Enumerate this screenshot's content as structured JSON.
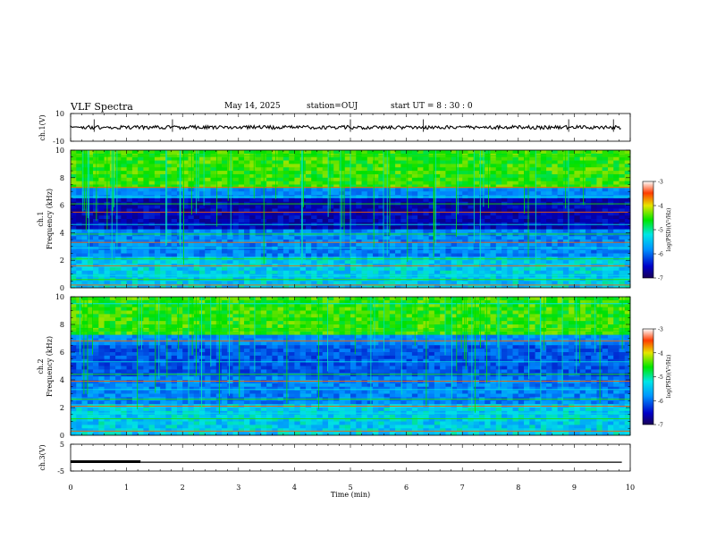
{
  "header": {
    "title": "VLF Spectra",
    "date": "May 14, 2025",
    "station": "station=OUJ",
    "start": "start  UT =  8 : 30 : 0"
  },
  "chart_data": [
    {
      "type": "line",
      "name": "ch.1 waveform",
      "ylabel": "ch.1(V)",
      "ylim": [
        -10,
        10
      ],
      "yticks": [
        "10",
        "-10"
      ],
      "xlim": [
        0,
        10
      ],
      "trace_level": 0,
      "spike_times": [
        0.42,
        1.82,
        5.0,
        6.3,
        8.9,
        9.7
      ]
    },
    {
      "type": "heatmap",
      "name": "ch.1 spectrogram",
      "ylabel_line1": "ch.1",
      "ylabel_line2": "Frequency  (kHz)",
      "ylim": [
        0,
        10
      ],
      "yticks": [
        "0",
        "2",
        "4",
        "6",
        "8",
        "10"
      ],
      "xlim": [
        0,
        10
      ],
      "colorbar": {
        "range": [
          -7,
          -3
        ],
        "ticks": [
          "-3",
          "-4",
          "-5",
          "-6",
          "-7"
        ],
        "label": "log(PSD)(V²/Hz)"
      },
      "bands_khz": [
        0.2,
        0.6,
        0.9,
        1.6,
        2.1,
        2.9,
        3.3,
        3.9,
        4.6,
        5.5,
        6.1,
        6.6,
        7.3,
        9.6
      ]
    },
    {
      "type": "heatmap",
      "name": "ch.2 spectrogram",
      "ylabel_line1": "ch.2",
      "ylabel_line2": "Frequency  (kHz)",
      "ylim": [
        0,
        10
      ],
      "yticks": [
        "0",
        "2",
        "4",
        "6",
        "8",
        "10"
      ],
      "xlim": [
        0,
        10
      ],
      "colorbar": {
        "range": [
          -7,
          -3
        ],
        "ticks": [
          "-3",
          "-4",
          "-5",
          "-6",
          "-7"
        ],
        "label": "log(PSD)(V²/Hz)"
      },
      "bands_khz": [
        0.3,
        1.2,
        1.6,
        2.1,
        2.6,
        3.3,
        3.9,
        4.4,
        5.3,
        6.8,
        7.6,
        9.5
      ]
    },
    {
      "type": "line",
      "name": "ch.3 waveform",
      "ylabel": "ch.3(V)",
      "ylim": [
        -5,
        5
      ],
      "yticks": [
        "5",
        "-5"
      ],
      "xlim": [
        0,
        10
      ],
      "segments": [
        {
          "x": [
            0,
            1.25
          ],
          "y": [
            -1.5,
            -1.5
          ],
          "width": "thick"
        },
        {
          "x": [
            1.25,
            9.85
          ],
          "y": [
            -1.7,
            -1.7
          ],
          "width": "thin"
        }
      ]
    }
  ],
  "xaxis": {
    "label": "Time  (min)",
    "ticks": [
      "0",
      "1",
      "2",
      "3",
      "4",
      "5",
      "6",
      "7",
      "8",
      "9",
      "10"
    ]
  },
  "colors": {
    "background": "#ffffff",
    "axes": "#000000",
    "heat_low": "#00006e",
    "heat_mid": "#00c8ff",
    "heat_high": "#ff0000"
  }
}
